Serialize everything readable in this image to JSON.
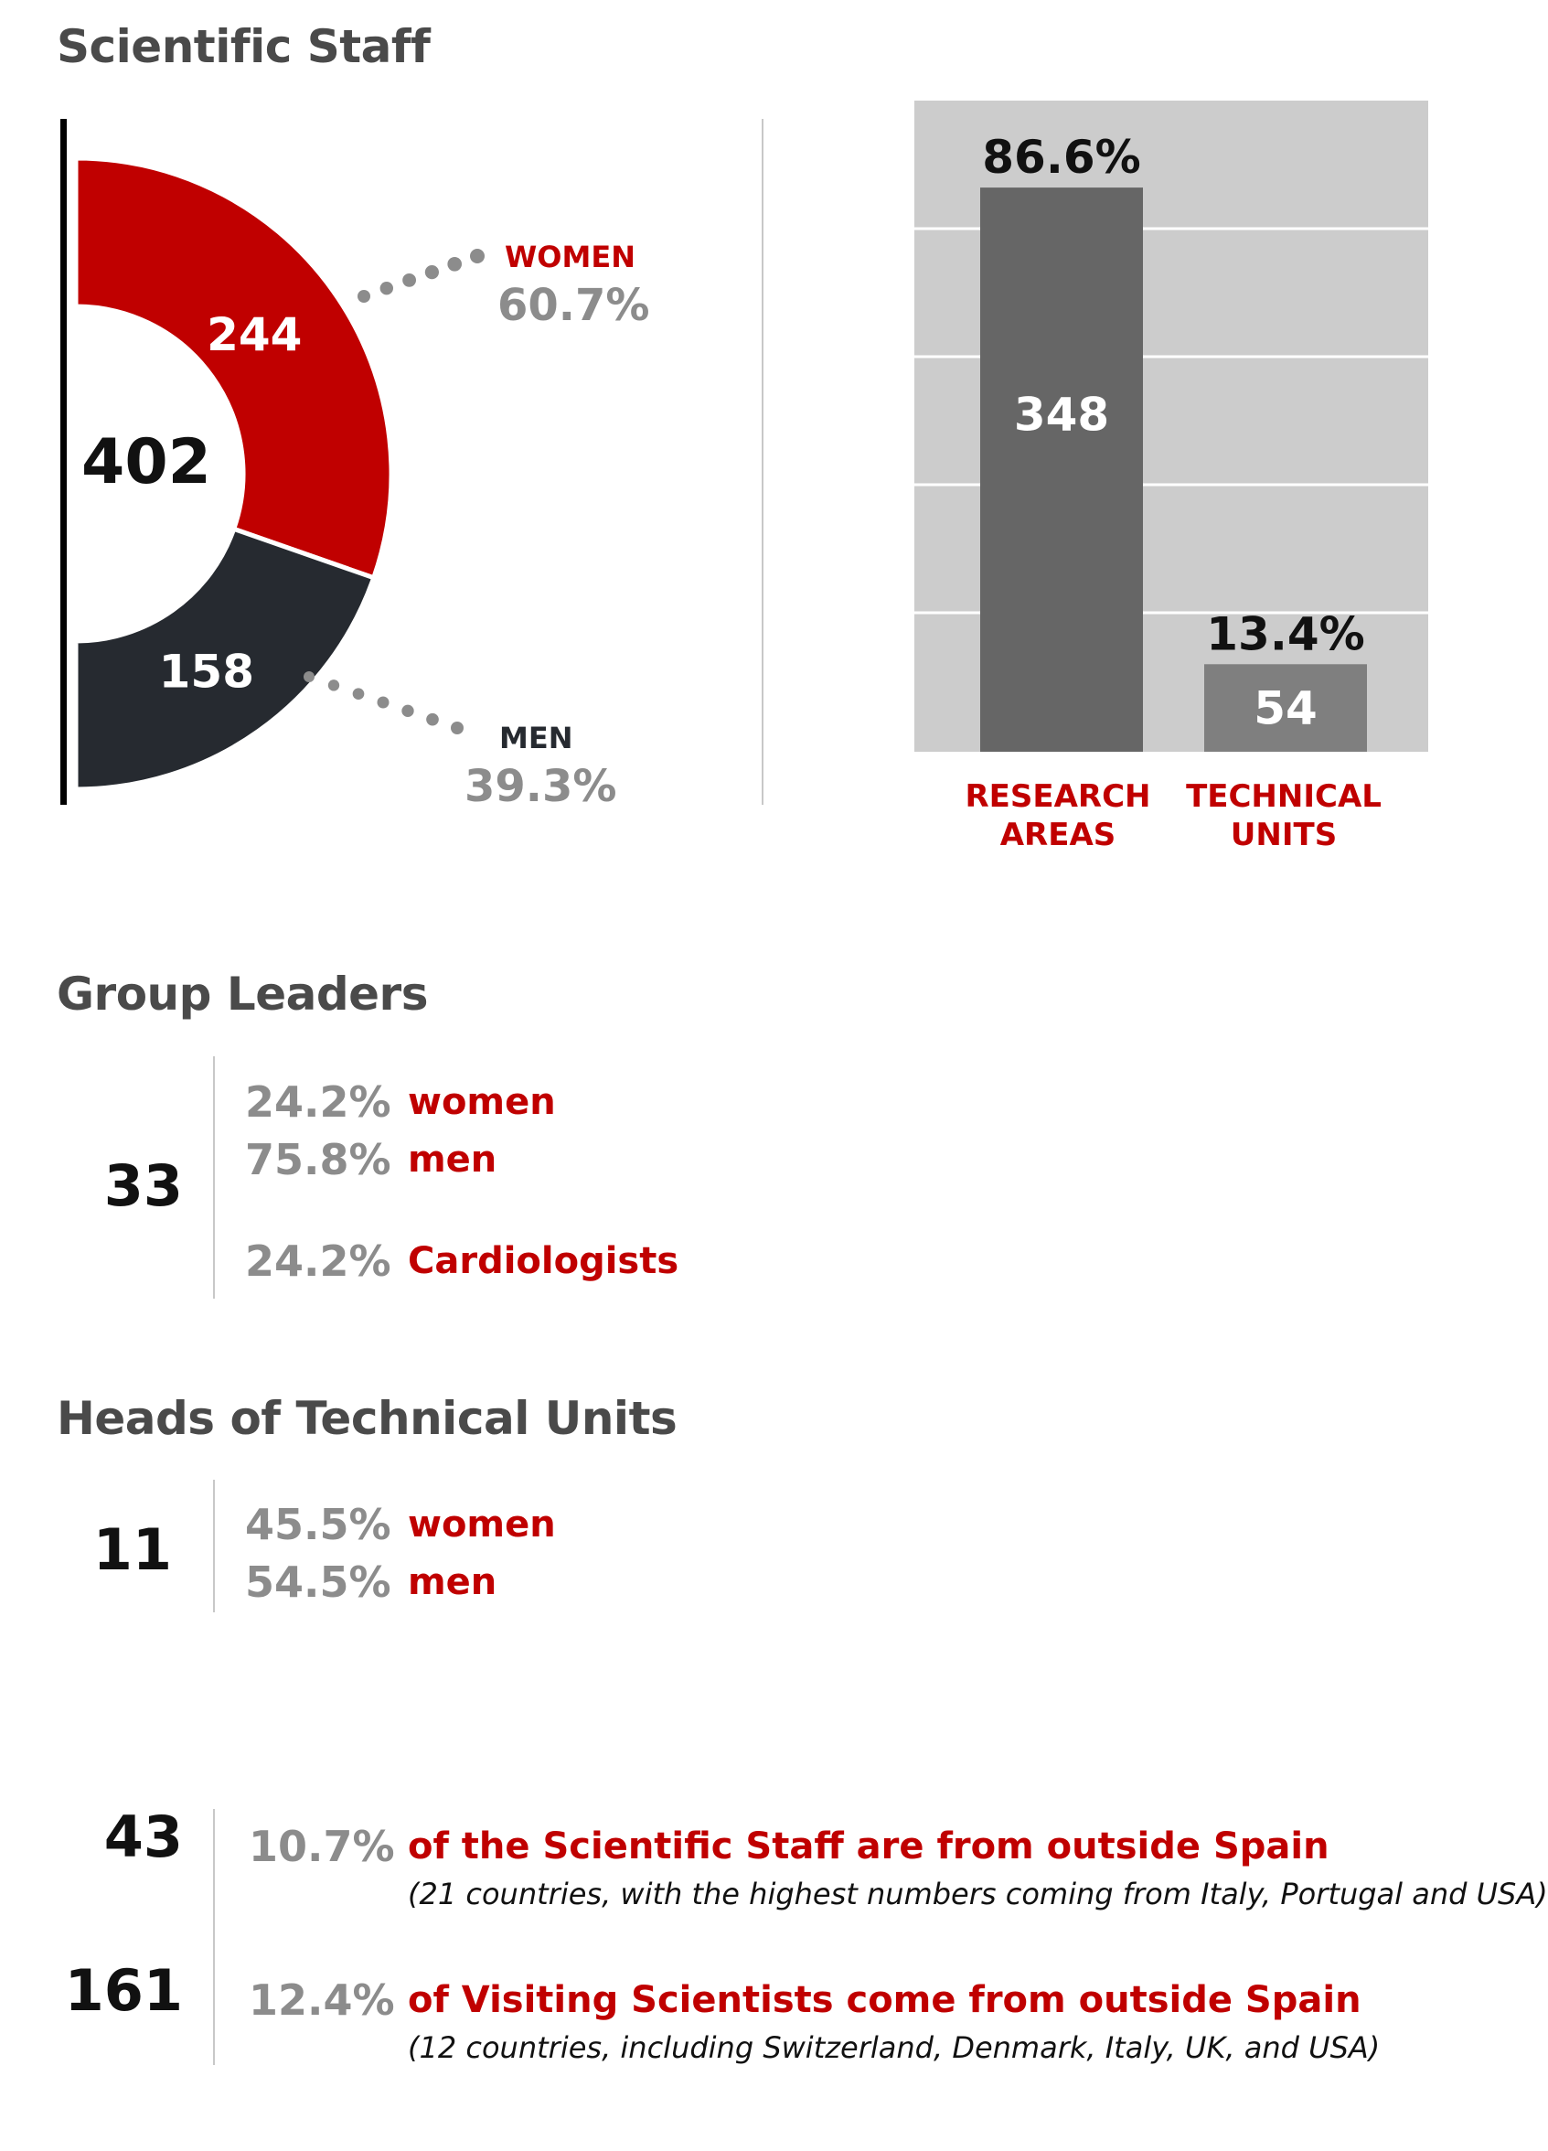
{
  "colors": {
    "women": "#c00000",
    "men": "#262a30",
    "bar_research": "#666666",
    "bar_technical": "#7f7f7f",
    "plot_bg": "#cccccc",
    "accent": "#c00000",
    "muted": "#8c8c8c"
  },
  "scientific_staff": {
    "title": "Scientific Staff",
    "total": "402",
    "women_label": "WOMEN",
    "women_pct": "60.7%",
    "men_label": "MEN",
    "men_pct": "39.3%"
  },
  "group_leaders": {
    "title": "Group Leaders",
    "total": "33",
    "rows": [
      {
        "pct": "24.2%",
        "label": "women"
      },
      {
        "pct": "75.8%",
        "label": "men"
      },
      {
        "pct": "24.2%",
        "label": "Cardiologists"
      }
    ]
  },
  "heads_technical": {
    "title": "Heads of Technical Units",
    "total": "11",
    "rows": [
      {
        "pct": "45.5%",
        "label": "women"
      },
      {
        "pct": "54.5%",
        "label": "men"
      }
    ]
  },
  "international": {
    "rows": [
      {
        "count": "43",
        "pct": "10.7%",
        "label": "of the Scientific Staff are from outside Spain",
        "note": "(21 countries, with the highest numbers coming from Italy, Portugal and USA)"
      },
      {
        "count": "161",
        "pct": "12.4%",
        "label": "of Visiting Scientists come from outside Spain",
        "note": "(12 countries, including Switzerland, Denmark, Italy, UK, and USA)"
      }
    ]
  },
  "chart_data": [
    {
      "type": "pie",
      "variant": "half-donut",
      "title": "",
      "total": 402,
      "series": [
        {
          "name": "WOMEN",
          "value": 244,
          "percent": 60.7
        },
        {
          "name": "MEN",
          "value": 158,
          "percent": 39.3
        }
      ]
    },
    {
      "type": "bar",
      "title": "",
      "categories": [
        "RESEARCH AREAS",
        "TECHNICAL UNITS"
      ],
      "category_lines": [
        [
          "RESEARCH",
          "AREAS"
        ],
        [
          "TECHNICAL",
          "UNITS"
        ]
      ],
      "values": [
        348,
        54
      ],
      "percent_labels": [
        "86.6%",
        "13.4%"
      ],
      "ylim": [
        0,
        396
      ],
      "grid": true
    }
  ]
}
